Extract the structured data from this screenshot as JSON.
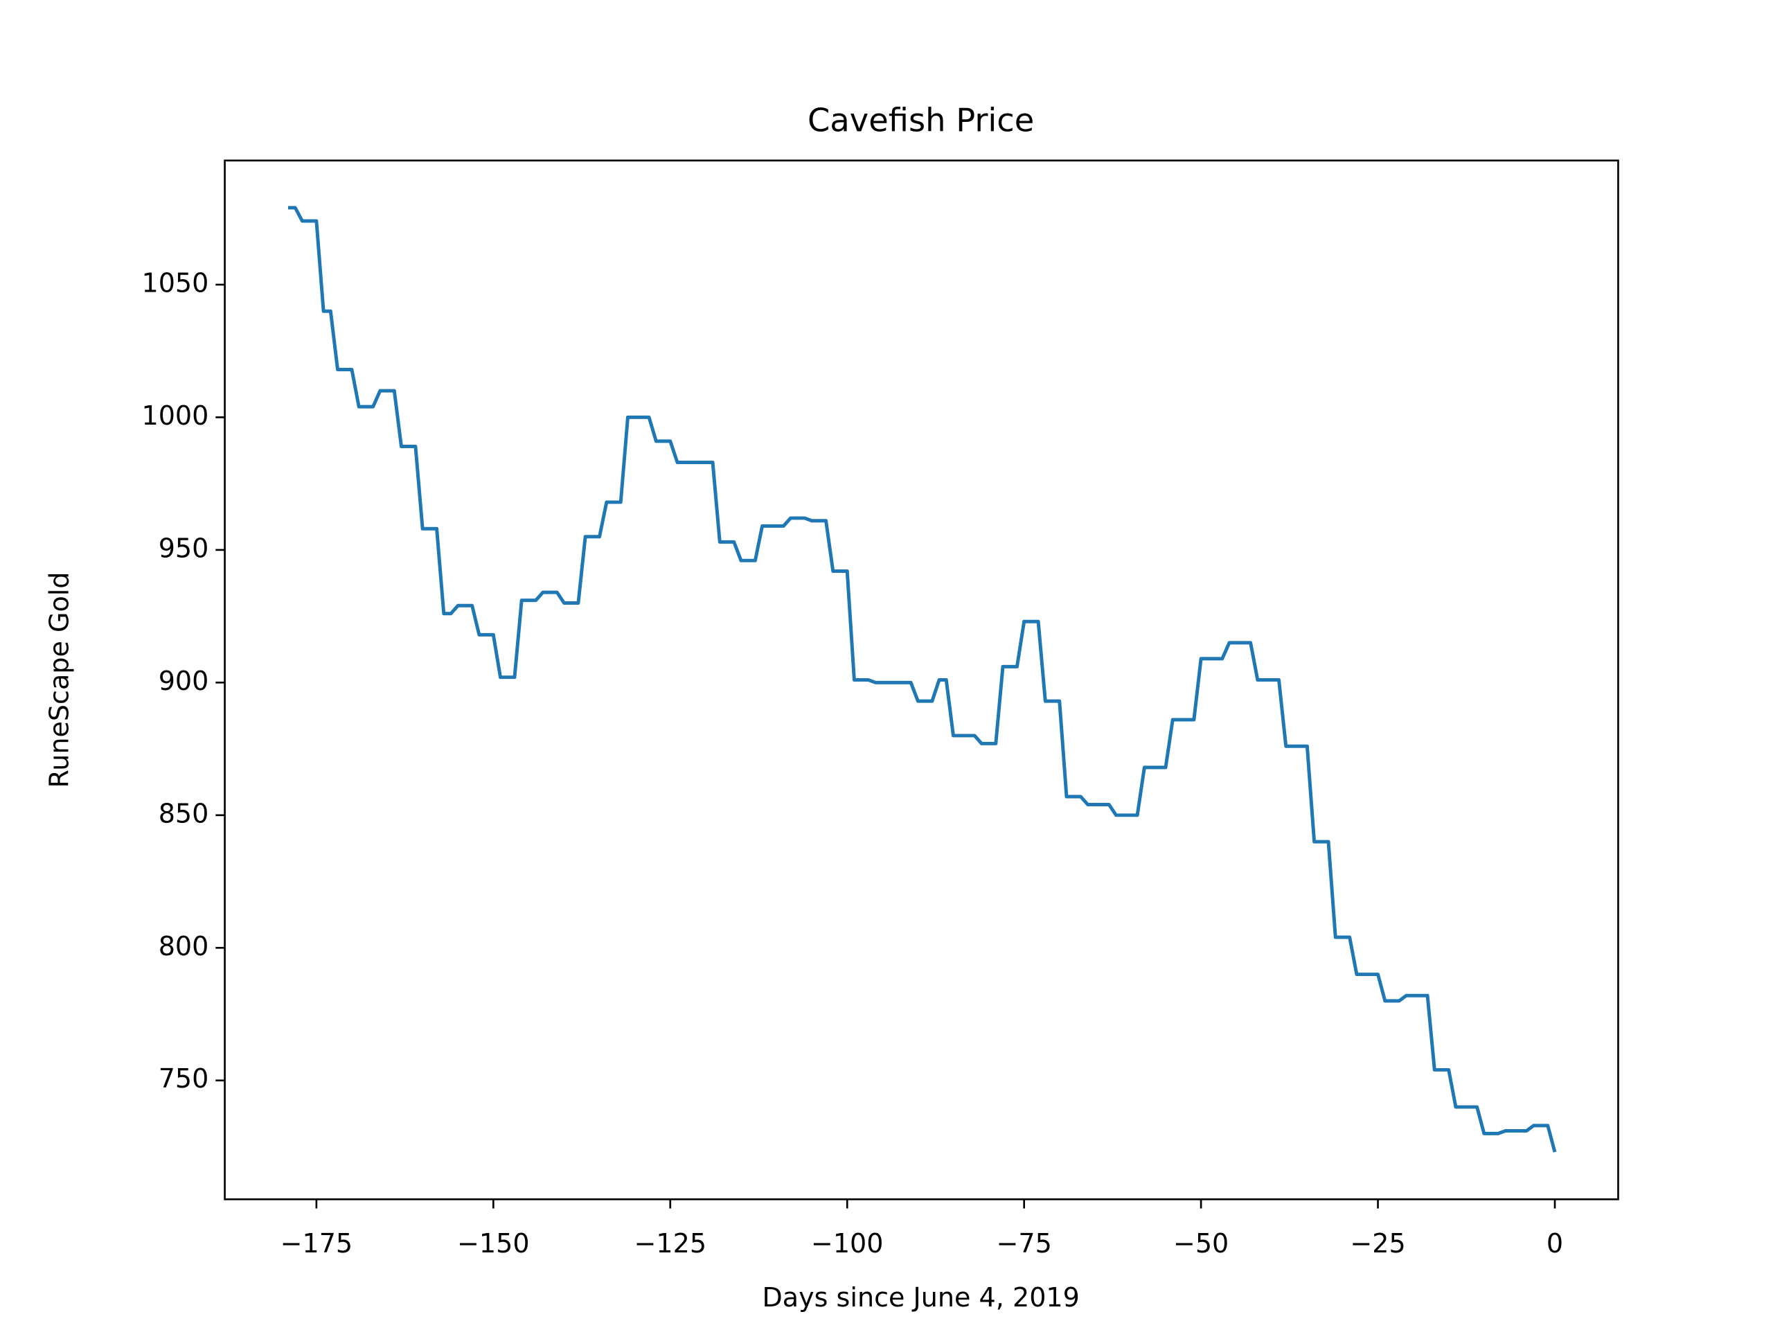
{
  "chart_data": {
    "type": "line",
    "title": "Cavefish Price",
    "x_label": "Days since June 4, 2019",
    "y_label": "RuneScape Gold",
    "x": [
      -179,
      -178,
      -177,
      -176,
      -175,
      -174,
      -173,
      -172,
      -171,
      -170,
      -169,
      -168,
      -167,
      -166,
      -165,
      -164,
      -163,
      -162,
      -161,
      -160,
      -159,
      -158,
      -157,
      -156,
      -155,
      -154,
      -153,
      -152,
      -151,
      -150,
      -149,
      -148,
      -147,
      -146,
      -145,
      -144,
      -143,
      -142,
      -141,
      -140,
      -139,
      -138,
      -137,
      -136,
      -135,
      -134,
      -133,
      -132,
      -131,
      -130,
      -129,
      -128,
      -127,
      -126,
      -125,
      -124,
      -123,
      -122,
      -121,
      -120,
      -119,
      -118,
      -117,
      -116,
      -115,
      -114,
      -113,
      -112,
      -111,
      -110,
      -109,
      -108,
      -107,
      -106,
      -105,
      -104,
      -103,
      -102,
      -101,
      -100,
      -99,
      -98,
      -97,
      -96,
      -95,
      -94,
      -93,
      -92,
      -91,
      -90,
      -89,
      -88,
      -87,
      -86,
      -85,
      -84,
      -83,
      -82,
      -81,
      -80,
      -79,
      -78,
      -77,
      -76,
      -75,
      -74,
      -73,
      -72,
      -71,
      -70,
      -69,
      -68,
      -67,
      -66,
      -65,
      -64,
      -63,
      -62,
      -61,
      -60,
      -59,
      -58,
      -57,
      -56,
      -55,
      -54,
      -53,
      -52,
      -51,
      -50,
      -49,
      -48,
      -47,
      -46,
      -45,
      -44,
      -43,
      -42,
      -41,
      -40,
      -39,
      -38,
      -37,
      -36,
      -35,
      -34,
      -33,
      -32,
      -31,
      -30,
      -29,
      -28,
      -27,
      -26,
      -25,
      -24,
      -23,
      -22,
      -21,
      -20,
      -19,
      -18,
      -17,
      -16,
      -15,
      -14,
      -13,
      -12,
      -11,
      -10,
      -9,
      -8,
      -7,
      -6,
      -5,
      -4,
      -3,
      -2,
      -1,
      0
    ],
    "series": [
      {
        "color": "#1f77b4",
        "values": [
          1079,
          1079,
          1074,
          1074,
          1074,
          1040,
          1040,
          1018,
          1018,
          1018,
          1004,
          1004,
          1004,
          1010,
          1010,
          1010,
          989,
          989,
          989,
          958,
          958,
          958,
          926,
          926,
          929,
          929,
          929,
          918,
          918,
          918,
          902,
          902,
          902,
          931,
          931,
          931,
          934,
          934,
          934,
          930,
          930,
          930,
          955,
          955,
          955,
          968,
          968,
          968,
          1000,
          1000,
          1000,
          1000,
          991,
          991,
          991,
          983,
          983,
          983,
          983,
          983,
          983,
          953,
          953,
          953,
          946,
          946,
          946,
          959,
          959,
          959,
          959,
          962,
          962,
          962,
          961,
          961,
          961,
          942,
          942,
          942,
          901,
          901,
          901,
          900,
          900,
          900,
          900,
          900,
          900,
          893,
          893,
          893,
          901,
          901,
          880,
          880,
          880,
          880,
          877,
          877,
          877,
          906,
          906,
          906,
          923,
          923,
          923,
          893,
          893,
          893,
          857,
          857,
          857,
          854,
          854,
          854,
          854,
          850,
          850,
          850,
          850,
          868,
          868,
          868,
          868,
          886,
          886,
          886,
          886,
          909,
          909,
          909,
          909,
          915,
          915,
          915,
          915,
          901,
          901,
          901,
          901,
          876,
          876,
          876,
          876,
          840,
          840,
          840,
          804,
          804,
          804,
          790,
          790,
          790,
          790,
          780,
          780,
          780,
          782,
          782,
          782,
          782,
          754,
          754,
          754,
          740,
          740,
          740,
          740,
          730,
          730,
          730,
          731,
          731,
          731,
          731,
          733,
          733,
          733,
          723
        ]
      }
    ],
    "xlim": [
      -187.95,
      8.95
    ],
    "ylim": [
      705.2,
      1096.8
    ],
    "xticks": [
      {
        "value": -175,
        "label": "−175"
      },
      {
        "value": -150,
        "label": "−150"
      },
      {
        "value": -125,
        "label": "−125"
      },
      {
        "value": -100,
        "label": "−100"
      },
      {
        "value": -75,
        "label": "−75"
      },
      {
        "value": -50,
        "label": "−50"
      },
      {
        "value": -25,
        "label": "−25"
      },
      0
    ],
    "yticks": [
      750,
      800,
      850,
      900,
      950,
      1000,
      1050
    ],
    "grid": false
  }
}
